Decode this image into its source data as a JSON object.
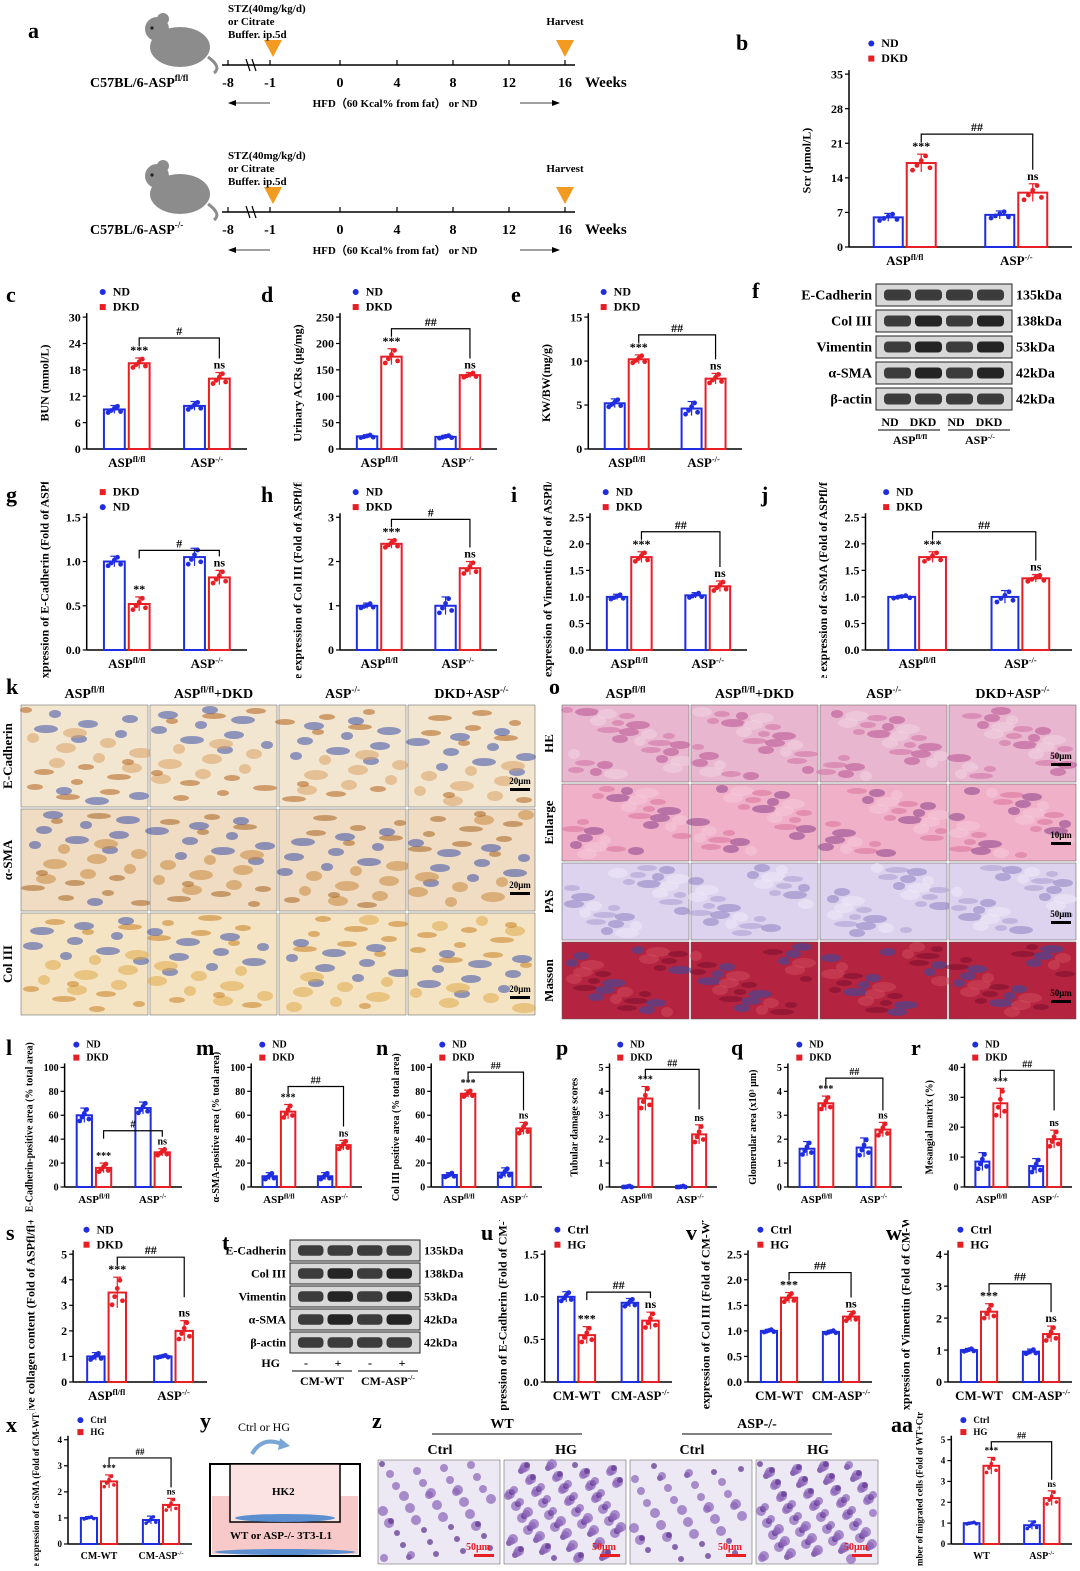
{
  "panels": {
    "a": {
      "label": "a",
      "rows": [
        {
          "strain_base": "C57BL/6-ASP",
          "strain_sup": "fl/fl",
          "stz": "STZ(40mg/kg/d)",
          "stz2": "or Citrate",
          "stz3": "Buffer. ip.5d",
          "harvest": "Harvest",
          "weeks": "Weeks",
          "ticks": [
            "-8",
            "-1",
            "0",
            "4",
            "8",
            "12",
            "16"
          ],
          "diet": "HFD（60 Kcal% from fat） or ND"
        },
        {
          "strain_base": "C57BL/6-ASP",
          "strain_sup": "-/-",
          "stz": "STZ(40mg/kg/d)",
          "stz2": "or Citrate",
          "stz3": "Buffer. ip.5d",
          "harvest": "Harvest",
          "weeks": "Weeks",
          "ticks": [
            "-8",
            "-1",
            "0",
            "4",
            "8",
            "12",
            "16"
          ],
          "diet": "HFD（60 Kcal% from fat） or ND"
        }
      ]
    },
    "f": {
      "label": "f",
      "bands": [
        "E-Cadherin",
        "Col III",
        "Vimentin",
        "α-SMA",
        "β-actin"
      ],
      "sizes": [
        "135kDa",
        "138kDa",
        "53kDa",
        "42kDa",
        "42kDa"
      ],
      "lanes": [
        "ND",
        "DKD",
        "ND",
        "DKD"
      ],
      "groups": [
        "ASPfl/fl",
        "ASP-/-"
      ]
    },
    "t": {
      "label": "t",
      "bands": [
        "E-Cadherin",
        "Col III",
        "Vimentin",
        "α-SMA",
        "β-actin"
      ],
      "sizes": [
        "135kDa",
        "138kDa",
        "53kDa",
        "42kDa",
        "42kDa"
      ],
      "hg_label": "HG",
      "hg_signs": [
        "-",
        "+",
        "-",
        "+"
      ],
      "groups": [
        "CM-WT",
        "CM-ASP-/-"
      ]
    },
    "k": {
      "label": "k",
      "cols": [
        "ASPfl/fl",
        "ASPfl/fl+DKD",
        "ASP-/-",
        "DKD+ASP-/-"
      ],
      "rows": [
        "E-Cadherin",
        "α-SMA",
        "Col III"
      ],
      "scale": [
        "20μm",
        "20μm",
        "20μm"
      ]
    },
    "o": {
      "label": "o",
      "cols": [
        "ASPfl/fl",
        "ASPfl/fl+DKD",
        "ASP-/-",
        "DKD+ASP-/-"
      ],
      "rows": [
        "HE",
        "Enlarge",
        "PAS",
        "Masson"
      ],
      "scale": [
        "50μm",
        "10μm",
        "50μm",
        "50μm"
      ]
    },
    "y": {
      "label": "y",
      "top": "Ctrl or HG",
      "insert": "HK2",
      "bottom": "WT or ASP-/- 3T3-L1"
    },
    "z": {
      "label": "z",
      "groups": [
        "WT",
        "ASP-/-"
      ],
      "cols": [
        "Ctrl",
        "HG",
        "Ctrl",
        "HG"
      ],
      "scale": "50μm"
    }
  },
  "chart_data": [
    {
      "id": "b",
      "type": "bar",
      "ylabel": "Scr (μmol/L)",
      "ylim": [
        0,
        35
      ],
      "yticks": [
        0,
        7,
        14,
        21,
        28,
        35
      ],
      "groups": [
        "ASPfl/fl",
        "ASP-/-"
      ],
      "legend": [
        "ND",
        "DKD"
      ],
      "series": [
        {
          "name": "ND",
          "values": [
            6,
            6.5
          ]
        },
        {
          "name": "DKD",
          "values": [
            17,
            11
          ]
        }
      ],
      "errors": [
        [
          0.8,
          0.8
        ],
        [
          1.8,
          1.8
        ]
      ],
      "sig": [
        "***",
        "ns"
      ],
      "bracket": "##"
    },
    {
      "id": "c",
      "type": "bar",
      "ylabel": "BUN (mmol/L)",
      "ylim": [
        0,
        30
      ],
      "yticks": [
        0,
        6,
        12,
        18,
        24,
        30
      ],
      "groups": [
        "ASPfl/fl",
        "ASP-/-"
      ],
      "legend": [
        "ND",
        "DKD"
      ],
      "series": [
        {
          "name": "ND",
          "values": [
            9,
            9.8
          ]
        },
        {
          "name": "DKD",
          "values": [
            19.5,
            16
          ]
        }
      ],
      "errors": [
        [
          0.9,
          1.0
        ],
        [
          1.2,
          1.4
        ]
      ],
      "sig": [
        "***",
        "ns"
      ],
      "bracket": "#"
    },
    {
      "id": "d",
      "type": "bar",
      "ylabel": "Urinary ACRs (μg/mg)",
      "ylim": [
        0,
        250
      ],
      "yticks": [
        0,
        50,
        100,
        150,
        200,
        250
      ],
      "groups": [
        "ASPfl/fl",
        "ASP-/-"
      ],
      "legend": [
        "ND",
        "DKD"
      ],
      "series": [
        {
          "name": "ND",
          "values": [
            24,
            23
          ]
        },
        {
          "name": "DKD",
          "values": [
            175,
            140
          ]
        }
      ],
      "errors": [
        [
          3,
          3
        ],
        [
          15,
          5
        ]
      ],
      "sig": [
        "***",
        "ns"
      ],
      "bracket": "##"
    },
    {
      "id": "e",
      "type": "bar",
      "ylabel": "KW/BW(mg/g)",
      "ylim": [
        0,
        15
      ],
      "yticks": [
        0,
        5,
        10,
        15
      ],
      "groups": [
        "ASPfl/fl",
        "ASP-/-"
      ],
      "legend": [
        "ND",
        "DKD"
      ],
      "series": [
        {
          "name": "ND",
          "values": [
            5.2,
            4.6
          ]
        },
        {
          "name": "DKD",
          "values": [
            10.2,
            8
          ]
        }
      ],
      "errors": [
        [
          0.5,
          0.8
        ],
        [
          0.5,
          0.6
        ]
      ],
      "sig": [
        "***",
        "ns"
      ],
      "bracket": "##"
    },
    {
      "id": "g",
      "type": "bar",
      "ylabel": "Relative expression of E-Cadherin (Fold of ASPfl/fl+ND)",
      "ylim": [
        0,
        1.5
      ],
      "yticks": [
        0.0,
        0.5,
        1.0,
        1.5
      ],
      "groups": [
        "ASPfl/fl",
        "ASP-/-"
      ],
      "legend": [
        "DKD",
        "ND"
      ],
      "series": [
        {
          "name": "ND",
          "values": [
            1.0,
            1.05
          ]
        },
        {
          "name": "DKD",
          "values": [
            0.52,
            0.82
          ]
        }
      ],
      "errors": [
        [
          0.06,
          0.1
        ],
        [
          0.08,
          0.08
        ]
      ],
      "sig": [
        "**",
        "ns"
      ],
      "bracket": "#"
    },
    {
      "id": "h",
      "type": "bar",
      "ylabel": "Relative expression of Col III (Fold of ASPfl/fl+ND)",
      "ylim": [
        0,
        3
      ],
      "yticks": [
        0,
        1,
        2,
        3
      ],
      "groups": [
        "ASPfl/fl",
        "ASP-/-"
      ],
      "legend": [
        "ND",
        "DKD"
      ],
      "series": [
        {
          "name": "ND",
          "values": [
            1.0,
            1.0
          ]
        },
        {
          "name": "DKD",
          "values": [
            2.4,
            1.85
          ]
        }
      ],
      "errors": [
        [
          0.06,
          0.2
        ],
        [
          0.1,
          0.15
        ]
      ],
      "sig": [
        "***",
        "ns"
      ],
      "bracket": "#"
    },
    {
      "id": "i",
      "type": "bar",
      "ylabel": "Relative expression of Vimentin (Fold of ASPfl/fl+ND)",
      "ylim": [
        0,
        2.5
      ],
      "yticks": [
        0.0,
        0.5,
        1.0,
        1.5,
        2.0,
        2.5
      ],
      "groups": [
        "ASPfl/fl",
        "ASP-/-"
      ],
      "legend": [
        "ND",
        "DKD"
      ],
      "series": [
        {
          "name": "ND",
          "values": [
            1.0,
            1.03
          ]
        },
        {
          "name": "DKD",
          "values": [
            1.75,
            1.2
          ]
        }
      ],
      "errors": [
        [
          0.05,
          0.05
        ],
        [
          0.1,
          0.1
        ]
      ],
      "sig": [
        "***",
        "ns"
      ],
      "bracket": "##"
    },
    {
      "id": "j",
      "type": "bar",
      "ylabel": "Relative expression of α-SMA (Fold of ASPfl/fl+ND)",
      "ylim": [
        0,
        2.5
      ],
      "yticks": [
        0.0,
        0.5,
        1.0,
        1.5,
        2.0,
        2.5
      ],
      "groups": [
        "ASPfl/fl",
        "ASP-/-"
      ],
      "legend": [
        "ND",
        "DKD"
      ],
      "series": [
        {
          "name": "ND",
          "values": [
            1.0,
            1.0
          ]
        },
        {
          "name": "DKD",
          "values": [
            1.75,
            1.35
          ]
        }
      ],
      "errors": [
        [
          0.03,
          0.12
        ],
        [
          0.1,
          0.07
        ]
      ],
      "sig": [
        "***",
        "ns"
      ],
      "bracket": "##"
    },
    {
      "id": "l",
      "type": "bar",
      "ylabel": "E-Cadherin-positive area (% total area)",
      "ylim": [
        0,
        100
      ],
      "yticks": [
        0,
        20,
        40,
        60,
        80,
        100
      ],
      "groups": [
        "ASPfl/fl",
        "ASP-/-"
      ],
      "legend": [
        "ND",
        "DKD"
      ],
      "series": [
        {
          "name": "ND",
          "values": [
            60,
            66
          ]
        },
        {
          "name": "DKD",
          "values": [
            16,
            29
          ]
        }
      ],
      "errors": [
        [
          6,
          5
        ],
        [
          4,
          3
        ]
      ],
      "sig": [
        "***",
        "ns"
      ],
      "bracket": "#"
    },
    {
      "id": "m",
      "type": "bar",
      "ylabel": "α-SMA-positive area (% total area)",
      "ylim": [
        0,
        100
      ],
      "yticks": [
        0,
        20,
        40,
        60,
        80,
        100
      ],
      "groups": [
        "ASPfl/fl",
        "ASP-/-"
      ],
      "legend": [
        "ND",
        "DKD"
      ],
      "series": [
        {
          "name": "ND",
          "values": [
            9,
            9
          ]
        },
        {
          "name": "DKD",
          "values": [
            63,
            35
          ]
        }
      ],
      "errors": [
        [
          3,
          3
        ],
        [
          6,
          4
        ]
      ],
      "sig": [
        "***",
        "ns"
      ],
      "bracket": "##"
    },
    {
      "id": "n",
      "type": "bar",
      "ylabel": "Col III positive area (% total area)",
      "ylim": [
        0,
        100
      ],
      "yticks": [
        0,
        20,
        40,
        60,
        80,
        100
      ],
      "groups": [
        "ASPfl/fl",
        "ASP-/-"
      ],
      "legend": [
        "ND",
        "DKD"
      ],
      "series": [
        {
          "name": "ND",
          "values": [
            10,
            12
          ]
        },
        {
          "name": "DKD",
          "values": [
            78,
            49
          ]
        }
      ],
      "errors": [
        [
          2,
          4
        ],
        [
          3,
          5
        ]
      ],
      "sig": [
        "***",
        "ns"
      ],
      "bracket": "##"
    },
    {
      "id": "p",
      "type": "bar",
      "ylabel": "Tubular damage scores",
      "ylim": [
        0,
        5
      ],
      "yticks": [
        0,
        1,
        2,
        3,
        4,
        5
      ],
      "groups": [
        "ASPfl/fl",
        "ASP-/-"
      ],
      "legend": [
        "ND",
        "DKD"
      ],
      "series": [
        {
          "name": "ND",
          "values": [
            0,
            0
          ]
        },
        {
          "name": "DKD",
          "values": [
            3.7,
            2.2
          ]
        }
      ],
      "errors": [
        [
          0,
          0
        ],
        [
          0.5,
          0.4
        ]
      ],
      "sig": [
        "***",
        "ns"
      ],
      "bracket": "##"
    },
    {
      "id": "q",
      "type": "bar",
      "ylabel": "Glomerular area (x10³ μm)",
      "ylim": [
        0,
        5
      ],
      "yticks": [
        0,
        1,
        2,
        3,
        4,
        5
      ],
      "groups": [
        "ASPfl/fl",
        "ASP-/-"
      ],
      "legend": [
        "ND",
        "DKD"
      ],
      "series": [
        {
          "name": "ND",
          "values": [
            1.6,
            1.65
          ]
        },
        {
          "name": "DKD",
          "values": [
            3.5,
            2.4
          ]
        }
      ],
      "errors": [
        [
          0.3,
          0.4
        ],
        [
          0.3,
          0.3
        ]
      ],
      "sig": [
        "***",
        "ns"
      ],
      "bracket": "##"
    },
    {
      "id": "r",
      "type": "bar",
      "ylabel": "Mesangial matrix (%)",
      "ylim": [
        0,
        40
      ],
      "yticks": [
        0,
        10,
        20,
        30,
        40
      ],
      "groups": [
        "ASPfl/fl",
        "ASP-/-"
      ],
      "legend": [
        "ND",
        "DKD"
      ],
      "series": [
        {
          "name": "ND",
          "values": [
            8.5,
            7
          ]
        },
        {
          "name": "DKD",
          "values": [
            28,
            16
          ]
        }
      ],
      "errors": [
        [
          3,
          2.5
        ],
        [
          5,
          3
        ]
      ],
      "sig": [
        "***",
        "ns"
      ],
      "bracket": "##"
    },
    {
      "id": "s",
      "type": "bar",
      "ylabel": "Relative collagen content (Fold of ASPfl/fl+ND)",
      "ylim": [
        0,
        5
      ],
      "yticks": [
        0,
        1,
        2,
        3,
        4,
        5
      ],
      "groups": [
        "ASPfl/fl",
        "ASP-/-"
      ],
      "legend": [
        "ND",
        "DKD"
      ],
      "series": [
        {
          "name": "ND",
          "values": [
            1.0,
            1.0
          ]
        },
        {
          "name": "DKD",
          "values": [
            3.5,
            2.0
          ]
        }
      ],
      "errors": [
        [
          0.15,
          0.05
        ],
        [
          0.6,
          0.4
        ]
      ],
      "sig": [
        "***",
        "ns"
      ],
      "bracket": "##"
    },
    {
      "id": "u",
      "type": "bar",
      "ylabel": "Relative expression of E-Cadherin (Fold of CM-WT+Ctrl)",
      "ylim": [
        0,
        1.5
      ],
      "yticks": [
        0.0,
        0.5,
        1.0,
        1.5
      ],
      "groups": [
        "CM-WT",
        "CM-ASP-/-"
      ],
      "legend": [
        "Ctrl",
        "HG"
      ],
      "series": [
        {
          "name": "Ctrl",
          "values": [
            1.0,
            0.93
          ]
        },
        {
          "name": "HG",
          "values": [
            0.55,
            0.72
          ]
        }
      ],
      "errors": [
        [
          0.06,
          0.05
        ],
        [
          0.1,
          0.1
        ]
      ],
      "sig": [
        "***",
        "ns"
      ],
      "bracket": "##"
    },
    {
      "id": "v",
      "type": "bar",
      "ylabel": "Relative expression of Col III (Fold of CM-WT+Ctrl)",
      "ylim": [
        0,
        2.5
      ],
      "yticks": [
        0.0,
        0.5,
        1.0,
        1.5,
        2.0,
        2.5
      ],
      "groups": [
        "CM-WT",
        "CM-ASP-/-"
      ],
      "legend": [
        "Ctrl",
        "HG"
      ],
      "series": [
        {
          "name": "Ctrl",
          "values": [
            1.0,
            0.98
          ]
        },
        {
          "name": "HG",
          "values": [
            1.65,
            1.28
          ]
        }
      ],
      "errors": [
        [
          0.03,
          0.03
        ],
        [
          0.1,
          0.1
        ]
      ],
      "sig": [
        "***",
        "ns"
      ],
      "bracket": "##"
    },
    {
      "id": "w",
      "type": "bar",
      "ylabel": "Relative expression of Vimentin (Fold of CM-WT+Ctrl)",
      "ylim": [
        0,
        4
      ],
      "yticks": [
        0,
        1,
        2,
        3,
        4
      ],
      "groups": [
        "CM-WT",
        "CM-ASP-/-"
      ],
      "legend": [
        "Ctrl",
        "HG"
      ],
      "series": [
        {
          "name": "Ctrl",
          "values": [
            1.0,
            0.95
          ]
        },
        {
          "name": "HG",
          "values": [
            2.2,
            1.5
          ]
        }
      ],
      "errors": [
        [
          0.05,
          0.08
        ],
        [
          0.25,
          0.25
        ]
      ],
      "sig": [
        "***",
        "ns"
      ],
      "bracket": "##"
    },
    {
      "id": "x",
      "type": "bar",
      "ylabel": "Relative expression of α-SMA (Fold of CM-WT+Ctrl)",
      "ylim": [
        0,
        4
      ],
      "yticks": [
        0,
        1,
        2,
        3,
        4
      ],
      "groups": [
        "CM-WT",
        "CM-ASP-/-"
      ],
      "legend": [
        "Ctrl",
        "HG"
      ],
      "series": [
        {
          "name": "Ctrl",
          "values": [
            1.0,
            0.92
          ]
        },
        {
          "name": "HG",
          "values": [
            2.4,
            1.5
          ]
        }
      ],
      "errors": [
        [
          0.05,
          0.15
        ],
        [
          0.25,
          0.25
        ]
      ],
      "sig": [
        "***",
        "ns"
      ],
      "bracket": "##"
    },
    {
      "id": "aa",
      "type": "bar",
      "ylabel": "Number of migrated cells (Fold of WT+Ctrl)",
      "ylim": [
        0,
        5
      ],
      "yticks": [
        0,
        1,
        2,
        3,
        4,
        5
      ],
      "groups": [
        "WT",
        "ASP-/-"
      ],
      "legend": [
        "Ctrl",
        "HG"
      ],
      "series": [
        {
          "name": "Ctrl",
          "values": [
            1.0,
            0.9
          ]
        },
        {
          "name": "HG",
          "values": [
            3.75,
            2.2
          ]
        }
      ],
      "errors": [
        [
          0.05,
          0.2
        ],
        [
          0.4,
          0.35
        ]
      ],
      "sig": [
        "***",
        "ns"
      ],
      "bracket": "##"
    }
  ],
  "colors": {
    "nd": "#1f2de0",
    "dkd": "#e81e25"
  }
}
